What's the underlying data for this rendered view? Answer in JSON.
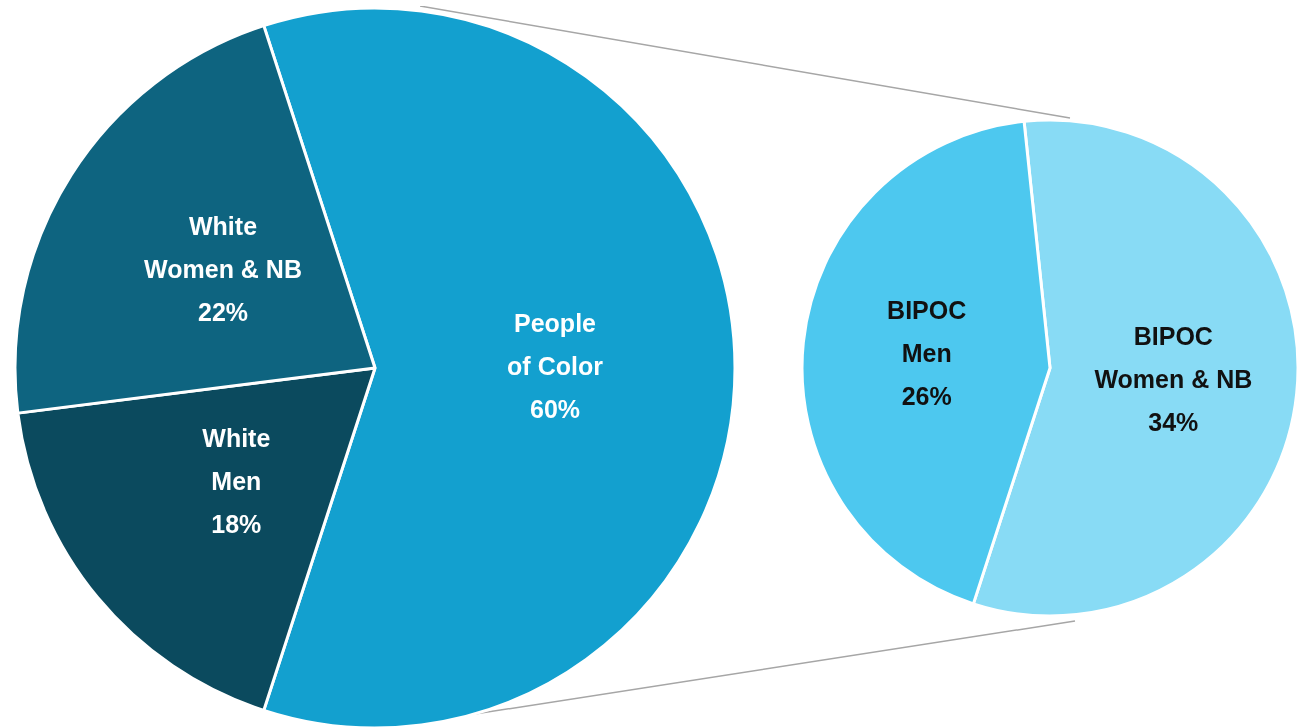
{
  "chart_data": [
    {
      "type": "pie",
      "categories": [
        "People of Color",
        "White Men",
        "White Women & NB"
      ],
      "values": [
        60,
        18,
        22
      ],
      "colors": [
        "#13a0cf",
        "#0b4a5e",
        "#0e6480"
      ],
      "value_labels": [
        "60%",
        "18%",
        "22%"
      ]
    },
    {
      "type": "pie",
      "categories": [
        "BIPOC Women & NB",
        "BIPOC Men"
      ],
      "values": [
        34,
        26
      ],
      "colors": [
        "#88dbf5",
        "#4dc8ef"
      ],
      "value_labels": [
        "34%",
        "26%"
      ]
    }
  ]
}
